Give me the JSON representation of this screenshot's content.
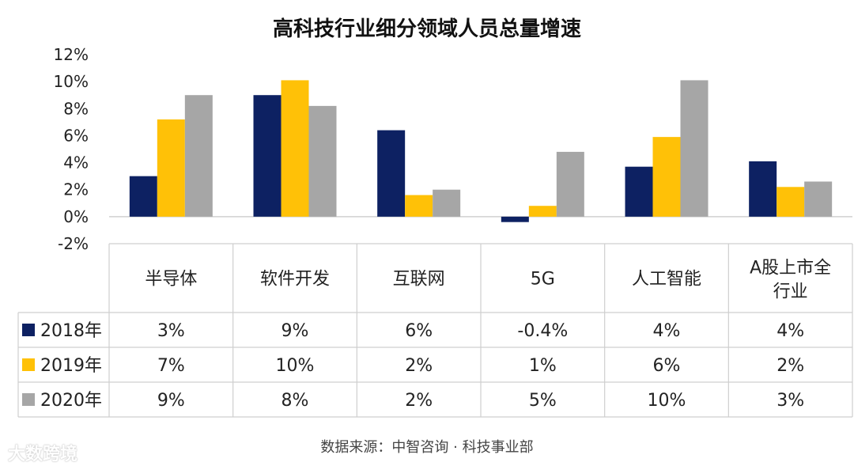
{
  "chart_data": {
    "type": "bar",
    "title": "高科技行业细分领域人员总量增速",
    "categories": [
      "半导体",
      "软件开发",
      "互联网",
      "5G",
      "人工智能",
      "A股上市全行业"
    ],
    "series": [
      {
        "name": "2018年",
        "color": "#0d2162",
        "values": [
          3,
          9,
          6.4,
          -0.4,
          3.7,
          4.1
        ],
        "labels": [
          "3%",
          "9%",
          "6%",
          "-0.4%",
          "4%",
          "4%"
        ]
      },
      {
        "name": "2019年",
        "color": "#ffc107",
        "values": [
          7.2,
          10.1,
          1.6,
          0.8,
          5.9,
          2.2
        ],
        "labels": [
          "7%",
          "10%",
          "2%",
          "1%",
          "6%",
          "2%"
        ]
      },
      {
        "name": "2020年",
        "color": "#a6a6a6",
        "values": [
          9,
          8.2,
          2,
          4.8,
          10.1,
          2.6
        ],
        "labels": [
          "9%",
          "8%",
          "2%",
          "5%",
          "10%",
          "3%"
        ]
      }
    ],
    "ylim": [
      -2,
      12
    ],
    "yticks": [
      "-2%",
      "0%",
      "2%",
      "4%",
      "6%",
      "8%",
      "10%",
      "12%"
    ],
    "ytick_values": [
      -2,
      0,
      2,
      4,
      6,
      8,
      10,
      12
    ],
    "gridlines": false,
    "legend": "data-table"
  },
  "source": "数据来源：中智咨询 · 科技事业部",
  "watermark": "大数跨境"
}
